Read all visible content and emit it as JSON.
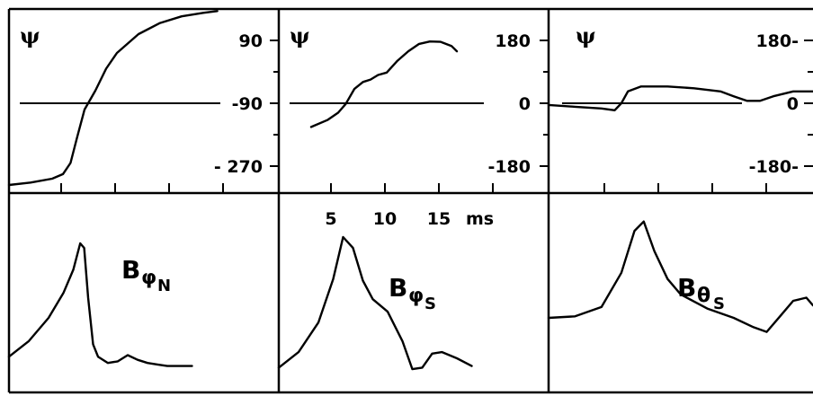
{
  "chart_data": [
    {
      "type": "line",
      "panel": "phase-N",
      "ylabel": "ψ",
      "yticks": [
        90,
        -90,
        -270
      ],
      "ytick_labels": [
        "90",
        "-90",
        "- 270"
      ],
      "ylim": [
        -360,
        180
      ],
      "xlim": [
        0,
        20
      ],
      "reference_y": -90,
      "series": [
        {
          "x": [
            0.0,
            2.0,
            4.0,
            5.0,
            5.7,
            6.3,
            7.0,
            8.0,
            9.0,
            10.0,
            12.0,
            14.0,
            16.0,
            18.0,
            19.3
          ],
          "y": [
            -324,
            -317,
            -306,
            -293,
            -261,
            -189,
            -108,
            -54,
            9,
            54,
            108,
            140,
            159,
            169,
            174
          ]
        }
      ]
    },
    {
      "type": "line",
      "panel": "phase-S",
      "ylabel": "ψ",
      "yticks": [
        180,
        0,
        -180
      ],
      "ytick_labels": [
        "180",
        "0",
        "-180"
      ],
      "ylim": [
        -270,
        270
      ],
      "xlim": [
        0,
        20
      ],
      "xticks": [
        5,
        10,
        15
      ],
      "xtick_labels": [
        "5",
        "10",
        "15"
      ],
      "xunit": "ms",
      "reference_y": 0,
      "series": [
        {
          "x": [
            3.0,
            4.5,
            5.5,
            6.2,
            7.0,
            7.8,
            8.5,
            9.2,
            10.0,
            11.0,
            12.0,
            13.0,
            14.0,
            15.0,
            16.0,
            16.5
          ],
          "y": [
            -68,
            -48,
            -27,
            -2,
            41,
            61,
            68,
            81,
            88,
            122,
            149,
            170,
            177,
            176,
            164,
            149
          ]
        }
      ]
    },
    {
      "type": "line",
      "panel": "phase-theta-S",
      "ylabel": "ψ",
      "yticks": [
        180,
        0,
        -180
      ],
      "ytick_labels": [
        "180-",
        "0",
        "-180-"
      ],
      "ylim": [
        -270,
        270
      ],
      "xlim": [
        0,
        20
      ],
      "reference_y": 0,
      "series": [
        {
          "x": [
            0.0,
            2.0,
            4.0,
            5.0,
            5.5,
            6.0,
            7.0,
            9.0,
            11.0,
            13.0,
            14.0,
            15.0,
            16.0,
            17.0,
            18.5,
            20.0
          ],
          "y": [
            -5,
            -10,
            -15,
            -20,
            0,
            34,
            48,
            48,
            43,
            34,
            20,
            7,
            7,
            20,
            34,
            34
          ]
        }
      ]
    },
    {
      "type": "line",
      "panel": "amp-phi-N",
      "label_main": "B",
      "label_sub": "φ",
      "label_subsub": "N",
      "xlim": [
        0,
        20
      ],
      "ylim": [
        0,
        1
      ],
      "series": [
        {
          "x": [
            0,
            2,
            4,
            5.5,
            6.5,
            7.2,
            7.6,
            8.0,
            8.5,
            9.0,
            10,
            11,
            12,
            13,
            14,
            15,
            16,
            17,
            18.5
          ],
          "y": [
            0.12,
            0.22,
            0.37,
            0.53,
            0.68,
            0.85,
            0.82,
            0.5,
            0.2,
            0.12,
            0.08,
            0.09,
            0.13,
            0.1,
            0.08,
            0.07,
            0.06,
            0.06,
            0.06
          ]
        }
      ]
    },
    {
      "type": "line",
      "panel": "amp-phi-S",
      "label_main": "B",
      "label_sub": "φ",
      "label_subsub": "S",
      "xlim": [
        0,
        20
      ],
      "ylim": [
        0,
        1
      ],
      "series": [
        {
          "x": [
            0,
            2,
            4,
            5.5,
            6.5,
            7.5,
            8.5,
            9.5,
            11,
            12.5,
            13.5,
            14.5,
            15.5,
            16.5,
            18,
            19.5
          ],
          "y": [
            0.05,
            0.15,
            0.34,
            0.62,
            0.89,
            0.82,
            0.61,
            0.49,
            0.41,
            0.22,
            0.04,
            0.05,
            0.14,
            0.15,
            0.11,
            0.06
          ]
        }
      ]
    },
    {
      "type": "line",
      "panel": "amp-theta-S",
      "label_main": "B",
      "label_sub": "θ",
      "label_subsub": "S",
      "xlim": [
        0,
        20
      ],
      "ylim": [
        0,
        1
      ],
      "series": [
        {
          "x": [
            0,
            2,
            4,
            5.5,
            6.5,
            7.2,
            8,
            9,
            10,
            12,
            14,
            15.5,
            16.5,
            17.5,
            18.5,
            19.5,
            20
          ],
          "y": [
            0.37,
            0.38,
            0.44,
            0.66,
            0.93,
            0.99,
            0.8,
            0.62,
            0.52,
            0.43,
            0.37,
            0.31,
            0.28,
            0.38,
            0.48,
            0.5,
            0.45
          ]
        }
      ]
    }
  ]
}
